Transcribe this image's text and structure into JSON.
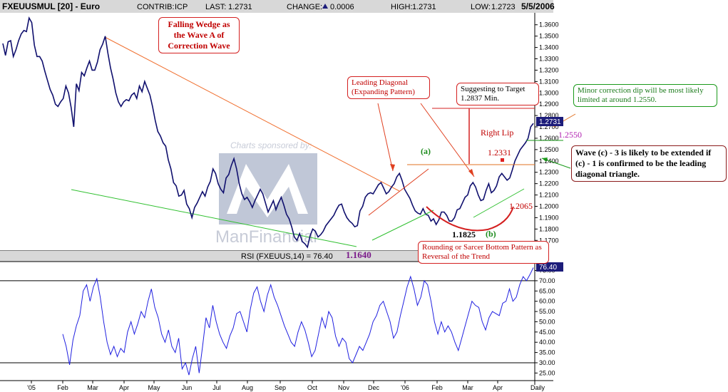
{
  "header": {
    "symbol": "FXEUUSMUL [20] - Euro",
    "contrib_label": "CONTRIB:",
    "contrib_value": "ICP",
    "last_label": "LAST:",
    "last_value": "1.2731",
    "change_label": "CHANGE:",
    "change_value": "0.0006",
    "high_label": "HIGH:",
    "high_value": "1.2731",
    "low_label": "LOW:",
    "low_value": "1.2723",
    "date": "5/5/2006"
  },
  "watermark": {
    "sponsor": "Charts sponsored by:",
    "brand": "ManFinancial"
  },
  "rsi_label": "RSI (FXEUUS,14) = 76.40",
  "last_price_tag": "1.2731",
  "last_rsi_tag": "76.40",
  "annotations": {
    "falling_wedge": "Falling Wedge as the Wave A of Correction Wave",
    "leading_diagonal": "Leading Diagonal (Expanding Pattern)",
    "suggest_target": "Suggesting to Target 1.2837 Min.",
    "minor_correction": "Minor correction dip will be most likely limited at around 1.2550.",
    "wave_c": "Wave (c) - 3 is likely to be extended if (c) - 1 is confirmed to be the leading diagonal triangle.",
    "rounding_bottom": "Rounding or Sarcer Bottom Pattern as Reversal of the Trend",
    "right_lip": "Right Lip",
    "wave_a": "(a)",
    "wave_b": "(b)",
    "level_1640": "1.1640",
    "level_1825": "1.1825",
    "level_2331": "1.2331",
    "level_2065": "1.2065",
    "level_2550": "1.2550"
  },
  "colors": {
    "price_line": "#10106e",
    "rsi_line": "#2020e0",
    "wedge_upper": "#f07030",
    "wedge_lower": "#30c030",
    "annotation_red": "#d42020",
    "annotation_green": "#1a9a1a",
    "tag_bg": "#1c1c7a",
    "header_bg": "#d8d8d8"
  },
  "chart_data": [
    {
      "type": "line",
      "series": [
        {
          "values": [
            1.3435,
            1.333,
            1.345,
            1.346,
            1.332,
            1.338,
            1.346,
            1.352,
            1.355,
            1.354,
            1.366,
            1.362,
            1.342,
            1.332,
            1.332,
            1.328,
            1.319,
            1.311,
            1.303,
            1.298,
            1.29,
            1.288,
            1.292,
            1.295,
            1.306,
            1.3,
            1.287,
            1.27,
            1.308,
            1.302,
            1.318,
            1.315,
            1.322,
            1.328,
            1.32,
            1.32,
            1.327,
            1.338,
            1.343,
            1.35,
            1.335,
            1.322,
            1.312,
            1.3,
            1.292,
            1.288,
            1.292,
            1.294,
            1.293,
            1.298,
            1.3,
            1.295,
            1.306,
            1.301,
            1.31,
            1.304,
            1.298,
            1.288,
            1.276,
            1.266,
            1.262,
            1.256,
            1.253,
            1.241,
            1.233,
            1.221,
            1.218,
            1.209,
            1.21,
            1.214,
            1.202,
            1.198,
            1.19,
            1.199,
            1.203,
            1.208,
            1.213,
            1.209,
            1.217,
            1.222,
            1.233,
            1.229,
            1.22,
            1.215,
            1.212,
            1.225,
            1.228,
            1.236,
            1.242,
            1.233,
            1.22,
            1.211,
            1.206,
            1.208,
            1.204,
            1.199,
            1.205,
            1.21,
            1.215,
            1.211,
            1.203,
            1.195,
            1.2,
            1.205,
            1.197,
            1.203,
            1.208,
            1.201,
            1.193,
            1.189,
            1.182,
            1.173,
            1.17,
            1.176,
            1.169,
            1.167,
            1.164,
            1.174,
            1.18,
            1.178,
            1.173,
            1.175,
            1.178,
            1.183,
            1.186,
            1.189,
            1.192,
            1.197,
            1.201,
            1.202,
            1.195,
            1.19,
            1.187,
            1.185,
            1.182,
            1.183,
            1.196,
            1.2,
            1.208,
            1.211,
            1.212,
            1.211,
            1.215,
            1.219,
            1.221,
            1.216,
            1.211,
            1.213,
            1.217,
            1.22,
            1.226,
            1.229,
            1.223,
            1.215,
            1.211,
            1.207,
            1.201,
            1.196,
            1.194,
            1.193,
            1.198,
            1.193,
            1.192,
            1.187,
            1.189,
            1.184,
            1.188,
            1.195,
            1.195,
            1.192,
            1.187,
            1.187,
            1.19,
            1.197,
            1.198,
            1.203,
            1.208,
            1.21,
            1.218,
            1.221,
            1.217,
            1.21,
            1.205,
            1.206,
            1.214,
            1.22,
            1.212,
            1.214,
            1.218,
            1.226,
            1.229,
            1.226,
            1.223,
            1.225,
            1.232,
            1.24,
            1.245,
            1.25,
            1.253,
            1.256,
            1.26,
            1.27,
            1.2731
          ]
        }
      ],
      "x_ticks": [
        "'05",
        "Feb",
        "Mar",
        "Apr",
        "May",
        "Jun",
        "Jul",
        "Aug",
        "Sep",
        "Oct",
        "Nov",
        "Dec",
        "'06",
        "Feb",
        "Mar",
        "Apr",
        "Daily"
      ],
      "y_ticks": [
        1.17,
        1.18,
        1.19,
        1.2,
        1.21,
        1.22,
        1.23,
        1.24,
        1.25,
        1.26,
        1.27,
        1.28,
        1.29,
        1.3,
        1.31,
        1.32,
        1.33,
        1.34,
        1.35,
        1.36
      ],
      "ylim": [
        1.162,
        1.368
      ],
      "grid": false
    },
    {
      "type": "line",
      "series": [
        {
          "values": [
            44,
            38,
            29,
            41,
            48,
            53,
            65,
            68,
            60,
            67,
            71,
            62,
            50,
            40,
            34,
            38,
            33,
            37,
            35,
            45,
            50,
            44,
            49,
            55,
            52,
            60,
            66,
            57,
            52,
            44,
            40,
            46,
            38,
            35,
            42,
            27,
            30,
            24,
            32,
            38,
            25,
            38,
            52,
            47,
            58,
            50,
            44,
            40,
            37,
            43,
            47,
            54,
            55,
            50,
            45,
            56,
            64,
            67,
            60,
            55,
            63,
            68,
            62,
            58,
            53,
            48,
            44,
            40,
            38,
            45,
            50,
            46,
            40,
            33,
            36,
            44,
            52,
            47,
            55,
            52,
            43,
            38,
            42,
            40,
            32,
            30,
            34,
            38,
            36,
            40,
            44,
            50,
            53,
            58,
            60,
            55,
            50,
            42,
            45,
            53,
            60,
            67,
            72,
            66,
            58,
            62,
            70,
            68,
            60,
            50,
            44,
            50,
            45,
            48,
            45,
            40,
            36,
            42,
            48,
            54,
            60,
            58,
            57,
            50,
            46,
            52,
            55,
            54,
            53,
            59,
            60,
            66,
            60,
            62,
            68,
            72,
            70,
            73,
            76.4
          ]
        }
      ],
      "y_ticks": [
        25,
        30,
        35,
        40,
        45,
        50,
        55,
        60,
        65,
        70,
        75
      ],
      "ylim": [
        22,
        79
      ],
      "reference_lines": [
        70,
        30
      ]
    }
  ]
}
